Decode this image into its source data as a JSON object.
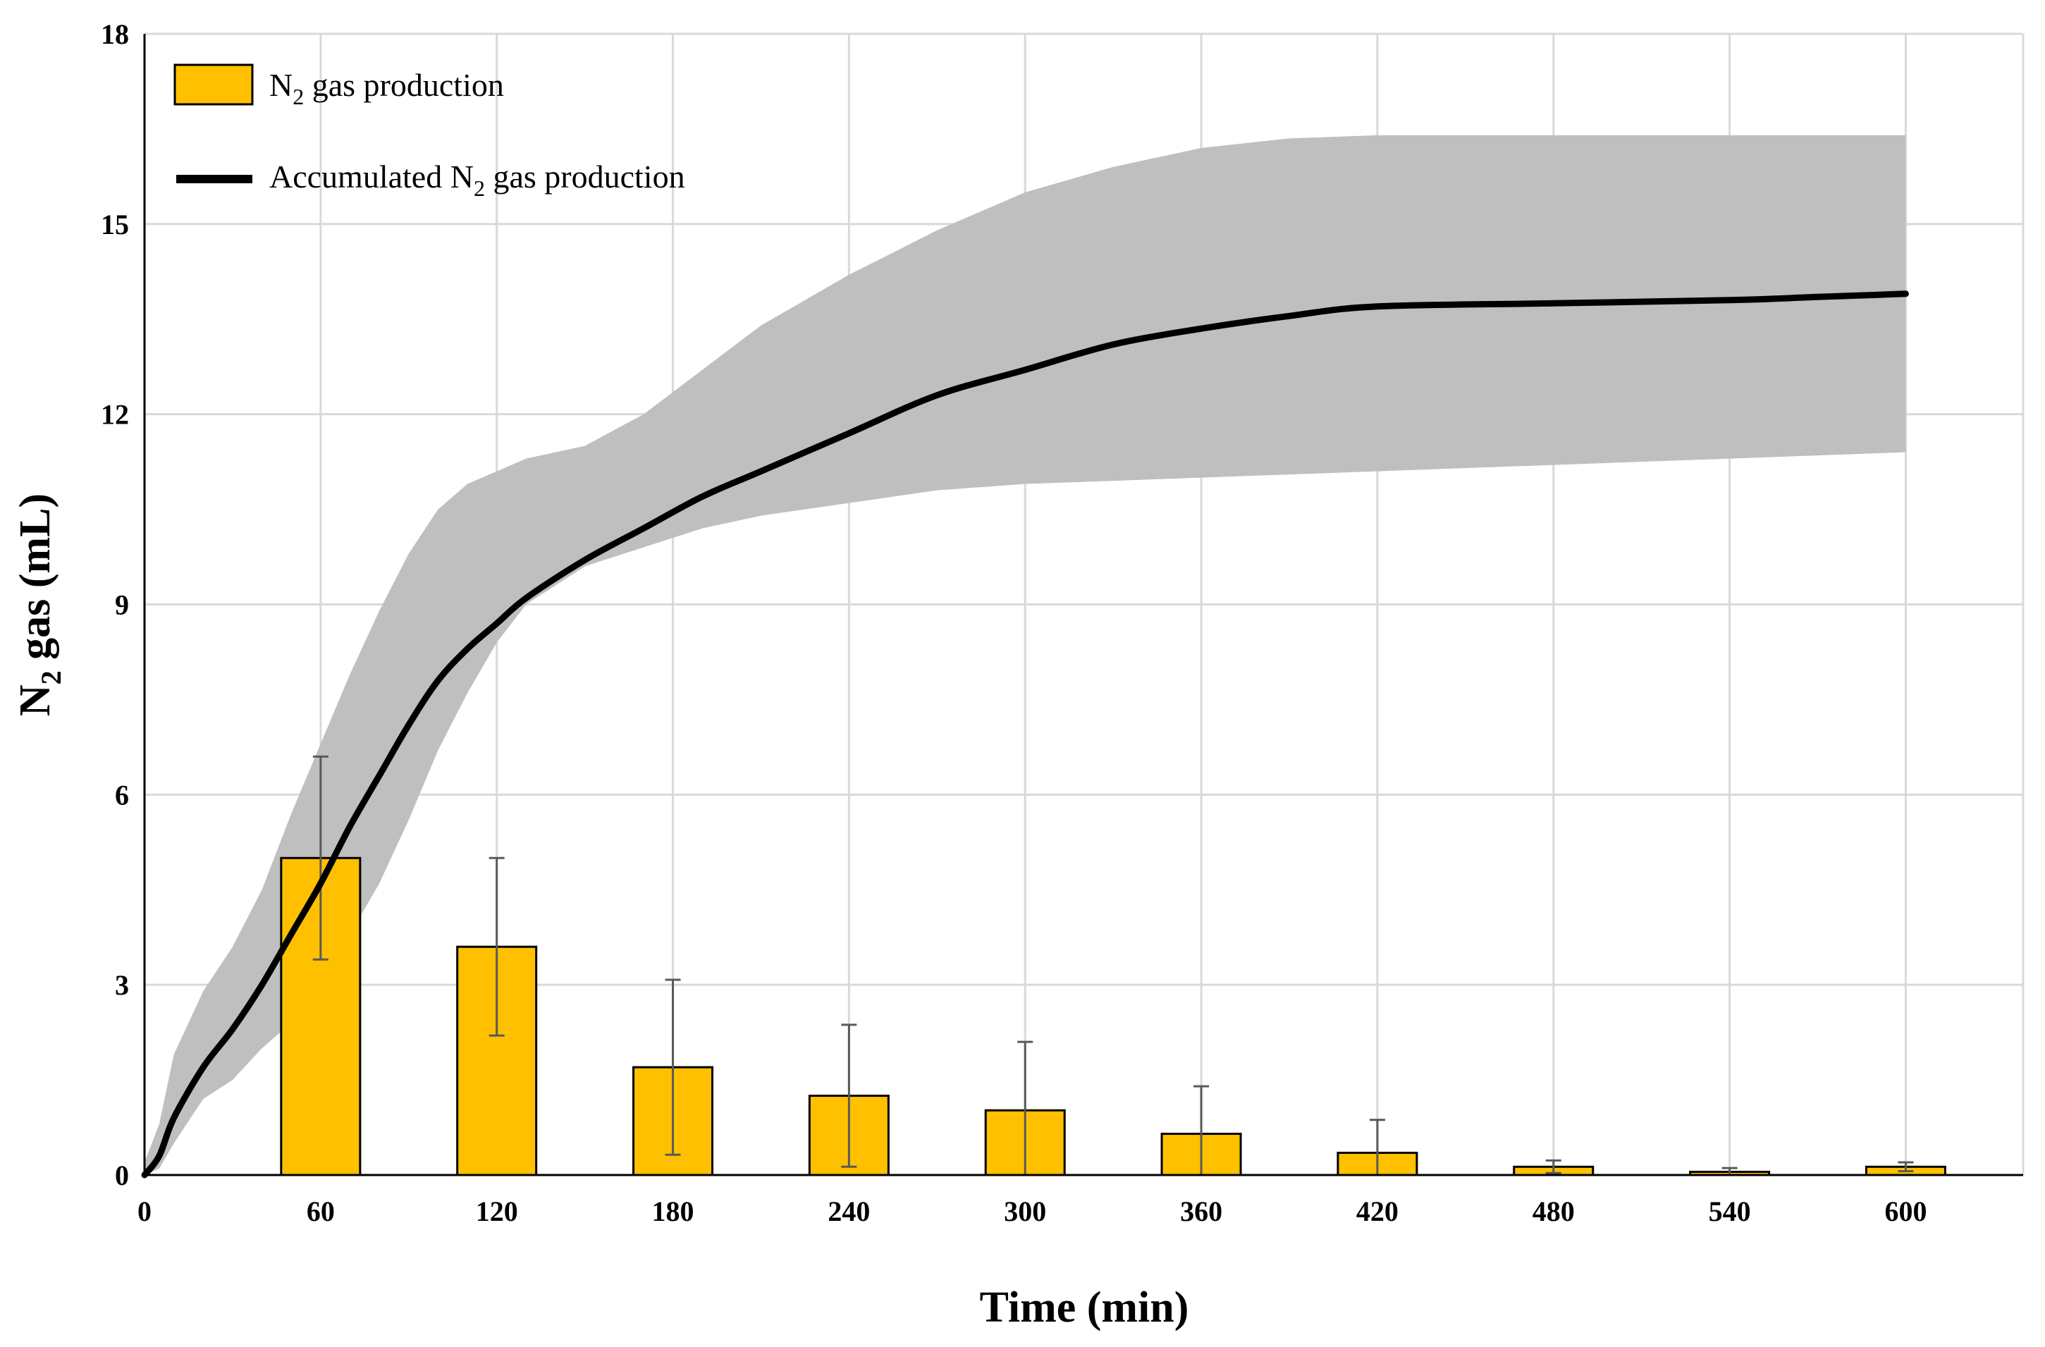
{
  "chart_data": {
    "type": "bar",
    "xlabel": "Time (min)",
    "ylabel": {
      "main": "N",
      "sub": "2",
      "rest": " gas (mL)"
    },
    "xlim": [
      0,
      640
    ],
    "ylim": [
      0,
      18
    ],
    "xticks": [
      0,
      60,
      120,
      180,
      240,
      300,
      360,
      420,
      480,
      540,
      600
    ],
    "yticks": [
      0,
      3,
      6,
      9,
      12,
      15,
      18
    ],
    "grid": true,
    "legend_position": "top-left",
    "colors": {
      "bar_fill": "#FFC000",
      "bar_stroke": "#000000",
      "line": "#000000",
      "band": "#BFBFBF",
      "grid": "#D9D9D9",
      "error_bar": "#595959"
    },
    "legend": [
      {
        "kind": "bar",
        "label": {
          "main": "N",
          "sub": "2",
          "rest": " gas production"
        }
      },
      {
        "kind": "line",
        "label": {
          "main": "Accumulated N",
          "sub": "2",
          "rest": " gas production"
        }
      }
    ],
    "bars": {
      "x": [
        60,
        120,
        180,
        240,
        300,
        360,
        420,
        480,
        540,
        600
      ],
      "values": [
        5.0,
        3.6,
        1.7,
        1.25,
        1.02,
        0.65,
        0.35,
        0.13,
        0.05,
        0.13
      ],
      "error": [
        1.6,
        1.4,
        1.38,
        1.12,
        1.08,
        0.75,
        0.52,
        0.1,
        0.06,
        0.07
      ]
    },
    "accumulated": {
      "x": [
        0,
        5,
        10,
        20,
        30,
        40,
        50,
        60,
        70,
        80,
        90,
        100,
        110,
        120,
        130,
        150,
        170,
        190,
        210,
        240,
        270,
        300,
        330,
        360,
        390,
        420,
        480,
        540,
        570,
        600
      ],
      "mean": [
        0,
        0.3,
        0.9,
        1.7,
        2.3,
        3.0,
        3.8,
        4.6,
        5.5,
        6.3,
        7.1,
        7.8,
        8.3,
        8.7,
        9.1,
        9.7,
        10.2,
        10.7,
        11.1,
        11.7,
        12.3,
        12.7,
        13.1,
        13.35,
        13.55,
        13.7,
        13.75,
        13.8,
        13.85,
        13.9
      ],
      "upper": [
        0.2,
        0.8,
        1.9,
        2.9,
        3.6,
        4.5,
        5.7,
        6.8,
        7.9,
        8.9,
        9.8,
        10.5,
        10.9,
        11.1,
        11.3,
        11.5,
        12.0,
        12.7,
        13.4,
        14.2,
        14.9,
        15.5,
        15.9,
        16.2,
        16.35,
        16.4,
        16.4,
        16.4,
        16.4,
        16.4
      ],
      "lower": [
        0,
        0.1,
        0.5,
        1.2,
        1.5,
        2.0,
        2.4,
        3.0,
        3.8,
        4.6,
        5.6,
        6.7,
        7.6,
        8.4,
        9.0,
        9.6,
        9.9,
        10.2,
        10.4,
        10.6,
        10.8,
        10.9,
        10.95,
        11.0,
        11.05,
        11.1,
        11.2,
        11.3,
        11.35,
        11.4
      ]
    }
  }
}
